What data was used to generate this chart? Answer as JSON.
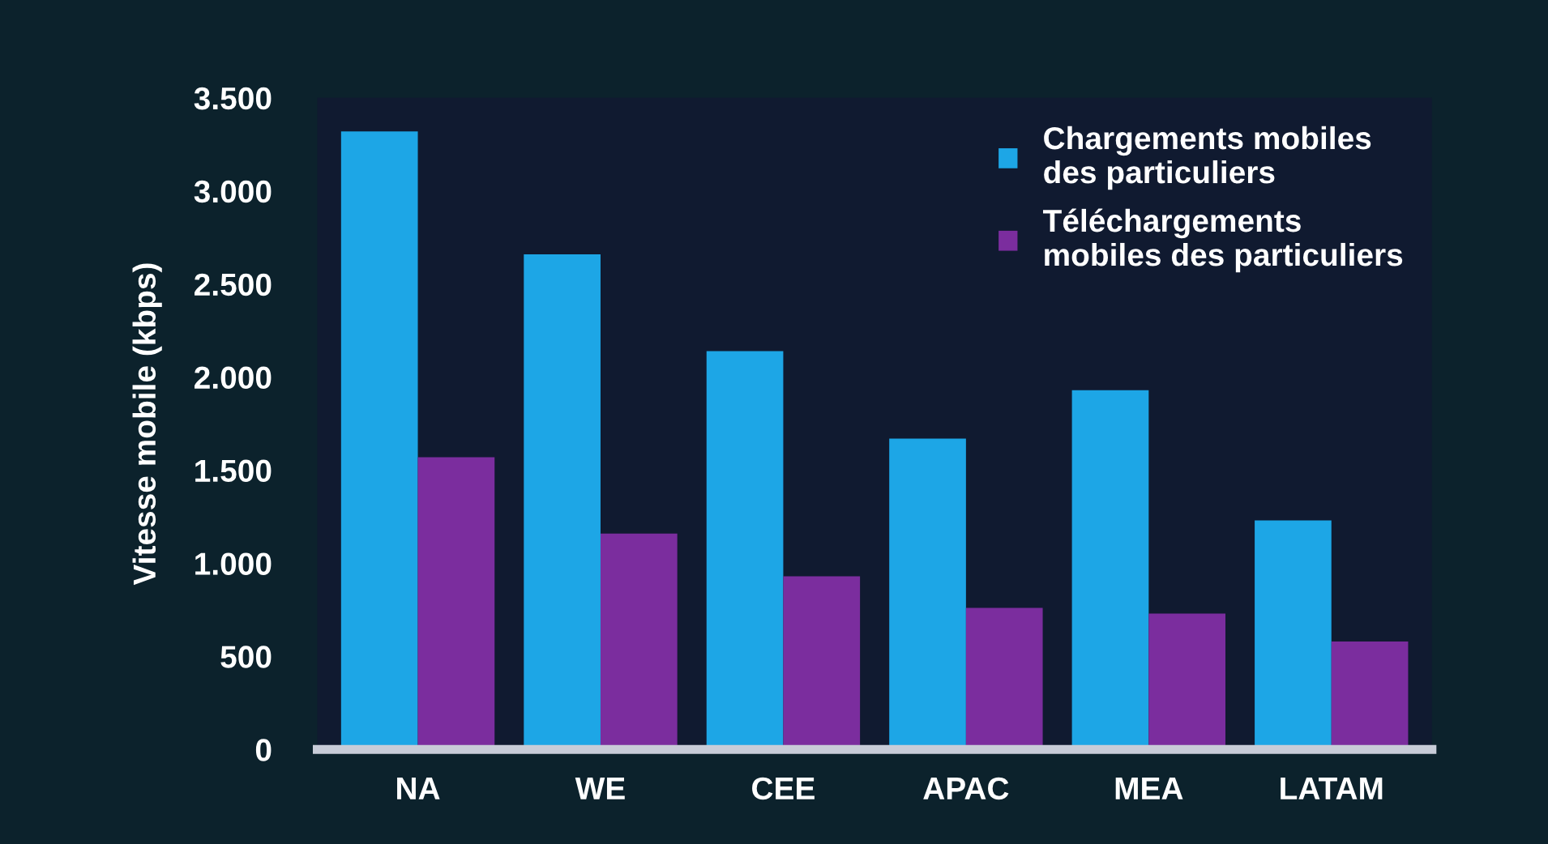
{
  "chart_data": {
    "type": "bar",
    "categories": [
      "NA",
      "WE",
      "CEE",
      "APAC",
      "MEA",
      "LATAM"
    ],
    "ylabel": "Vitesse mobile (kbps)",
    "series": [
      {
        "name": "Chargements mobiles des particuliers",
        "color": "#1da6e6",
        "values": [
          3320,
          2660,
          2140,
          1670,
          1930,
          1230
        ]
      },
      {
        "name": "Téléchargements mobiles des particuliers",
        "color": "#7b2d9e",
        "values": [
          1570,
          1160,
          930,
          760,
          730,
          580
        ]
      }
    ],
    "ylim": [
      0,
      3500
    ],
    "yticks": [
      0,
      500,
      {
        "value": 1000,
        "label": "1.000"
      },
      {
        "value": 1500,
        "label": "1.500"
      },
      {
        "value": 2000,
        "label": "2.000"
      },
      {
        "value": 2500,
        "label": "2.500"
      },
      {
        "value": 3000,
        "label": "3.000"
      },
      {
        "value": 3500,
        "label": "3.500"
      }
    ],
    "grid": false,
    "legend": "top right"
  }
}
